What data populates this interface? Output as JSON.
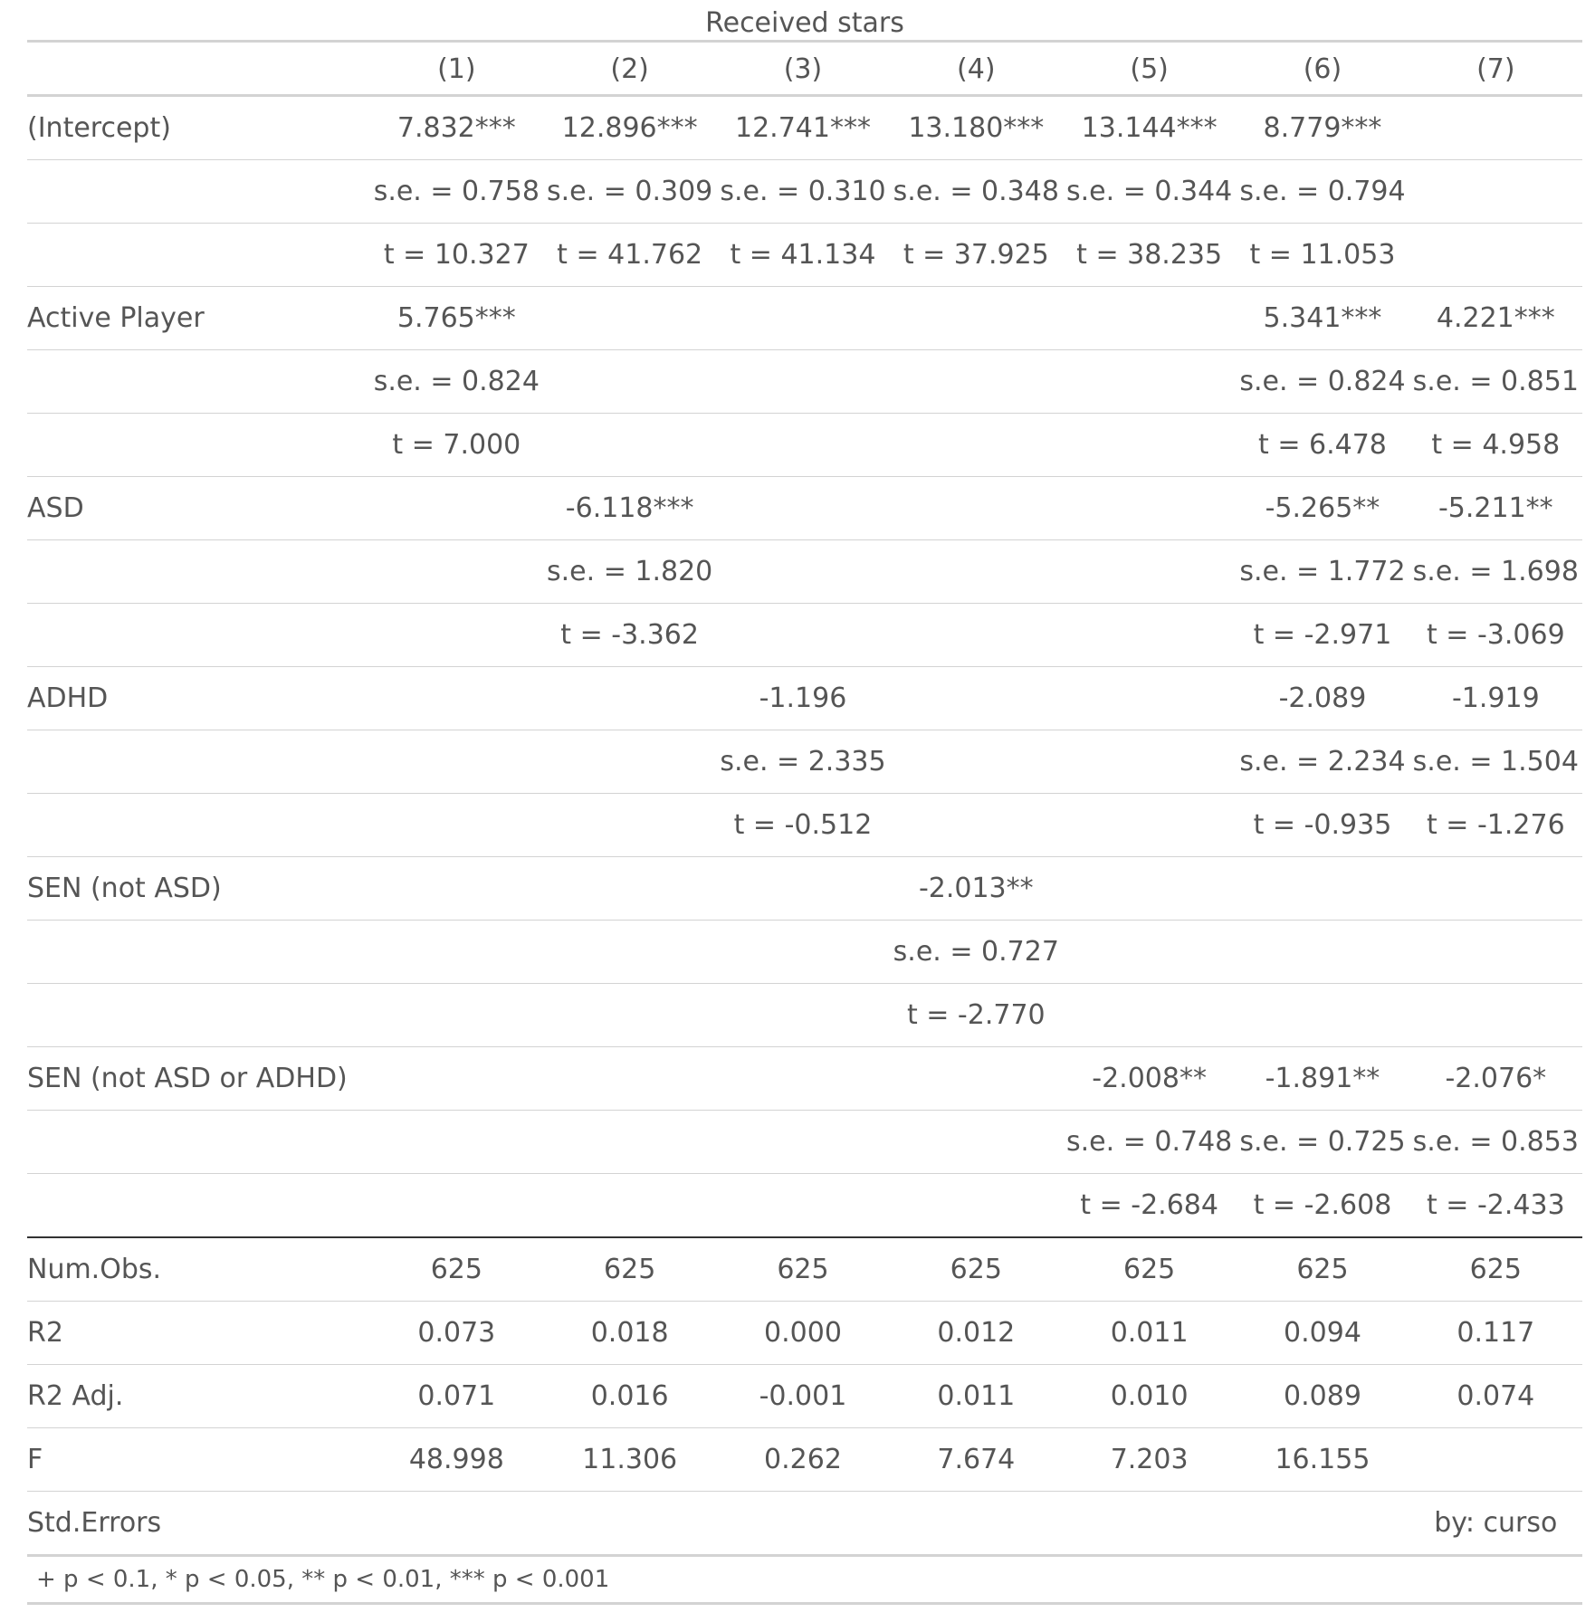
{
  "spanner": "Received stars",
  "columns": [
    "",
    "(1)",
    "(2)",
    "(3)",
    "(4)",
    "(5)",
    "(6)",
    "(7)"
  ],
  "coef_rows": [
    [
      "(Intercept)",
      "7.832***",
      "12.896***",
      "12.741***",
      "13.180***",
      "13.144***",
      "8.779***",
      ""
    ],
    [
      "",
      "s.e. = 0.758",
      "s.e. = 0.309",
      "s.e. = 0.310",
      "s.e. = 0.348",
      "s.e. = 0.344",
      "s.e. = 0.794",
      ""
    ],
    [
      "",
      "t = 10.327",
      "t = 41.762",
      "t = 41.134",
      "t = 37.925",
      "t = 38.235",
      "t = 11.053",
      ""
    ],
    [
      "Active Player",
      "5.765***",
      "",
      "",
      "",
      "",
      "5.341***",
      "4.221***"
    ],
    [
      "",
      "s.e. = 0.824",
      "",
      "",
      "",
      "",
      "s.e. = 0.824",
      "s.e. = 0.851"
    ],
    [
      "",
      "t = 7.000",
      "",
      "",
      "",
      "",
      "t = 6.478",
      "t = 4.958"
    ],
    [
      "ASD",
      "",
      "-6.118***",
      "",
      "",
      "",
      "-5.265**",
      "-5.211**"
    ],
    [
      "",
      "",
      "s.e. = 1.820",
      "",
      "",
      "",
      "s.e. = 1.772",
      "s.e. = 1.698"
    ],
    [
      "",
      "",
      "t = -3.362",
      "",
      "",
      "",
      "t = -2.971",
      "t = -3.069"
    ],
    [
      "ADHD",
      "",
      "",
      "-1.196",
      "",
      "",
      "-2.089",
      "-1.919"
    ],
    [
      "",
      "",
      "",
      "s.e. = 2.335",
      "",
      "",
      "s.e. = 2.234",
      "s.e. = 1.504"
    ],
    [
      "",
      "",
      "",
      "t = -0.512",
      "",
      "",
      "t = -0.935",
      "t = -1.276"
    ],
    [
      "SEN (not ASD)",
      "",
      "",
      "",
      "-2.013**",
      "",
      "",
      ""
    ],
    [
      "",
      "",
      "",
      "",
      "s.e. = 0.727",
      "",
      "",
      ""
    ],
    [
      "",
      "",
      "",
      "",
      "t = -2.770",
      "",
      "",
      ""
    ],
    [
      "SEN (not ASD or ADHD)",
      "",
      "",
      "",
      "",
      "-2.008**",
      "-1.891**",
      "-2.076*"
    ],
    [
      "",
      "",
      "",
      "",
      "",
      "s.e. = 0.748",
      "s.e. = 0.725",
      "s.e. = 0.853"
    ],
    [
      "",
      "",
      "",
      "",
      "",
      "t = -2.684",
      "t = -2.608",
      "t = -2.433"
    ]
  ],
  "stat_rows": [
    [
      "Num.Obs.",
      "625",
      "625",
      "625",
      "625",
      "625",
      "625",
      "625"
    ],
    [
      "R2",
      "0.073",
      "0.018",
      "0.000",
      "0.012",
      "0.011",
      "0.094",
      "0.117"
    ],
    [
      "R2 Adj.",
      "0.071",
      "0.016",
      "-0.001",
      "0.011",
      "0.010",
      "0.089",
      "0.074"
    ],
    [
      "F",
      "48.998",
      "11.306",
      "0.262",
      "7.674",
      "7.203",
      "16.155",
      ""
    ],
    [
      "Std.Errors",
      "",
      "",
      "",
      "",
      "",
      "",
      "by: curso"
    ]
  ],
  "footnote": "+ p < 0.1, * p < 0.05, ** p < 0.01, *** p < 0.001"
}
